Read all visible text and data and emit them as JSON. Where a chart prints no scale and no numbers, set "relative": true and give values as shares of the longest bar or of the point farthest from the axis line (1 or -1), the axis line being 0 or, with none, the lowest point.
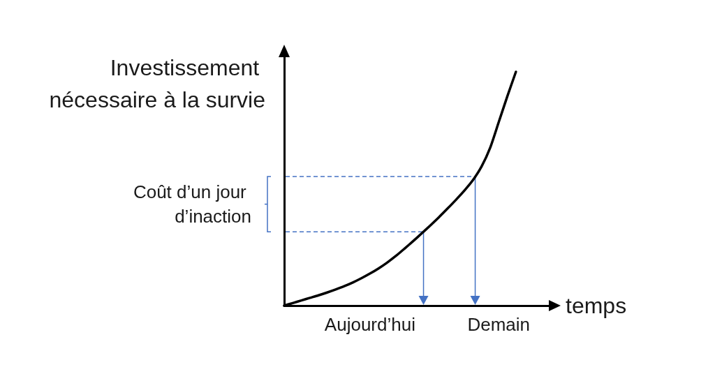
{
  "chart_data": {
    "type": "line",
    "relative": true,
    "categories": [
      null,
      null,
      null,
      null,
      null,
      null,
      null,
      null,
      null,
      null,
      "Aujourd’hui",
      null,
      null,
      null,
      null,
      null,
      null,
      null,
      null,
      null,
      null,
      null,
      null,
      null,
      null,
      "Demain",
      null,
      null,
      null,
      null,
      null,
      null
    ],
    "values": [
      0,
      0.011,
      0.022,
      0.033,
      0.044,
      0.056,
      0.069,
      0.083,
      0.099,
      0.117,
      0.137,
      0.159,
      0.184,
      0.212,
      0.243,
      0.275,
      0.308,
      0.342,
      0.377,
      0.414,
      0.452,
      0.492,
      0.537,
      0.595,
      0.675,
      0.785,
      0.895,
      1,
      null,
      null,
      null,
      null
    ],
    "color": "#000000",
    "marker": "none",
    "xlabel": "temps",
    "ylabel": "Investissement nécessaire à la survie",
    "ref_lines": [
      {
        "axis": "y",
        "value": 0.316,
        "color": "#4472c4",
        "line_style": "dashed"
      },
      {
        "axis": "y",
        "value": 0.552,
        "color": "#4472c4",
        "line_style": "dashed"
      }
    ],
    "annotations": [
      "Coût d’un jour d’inaction"
    ]
  }
}
